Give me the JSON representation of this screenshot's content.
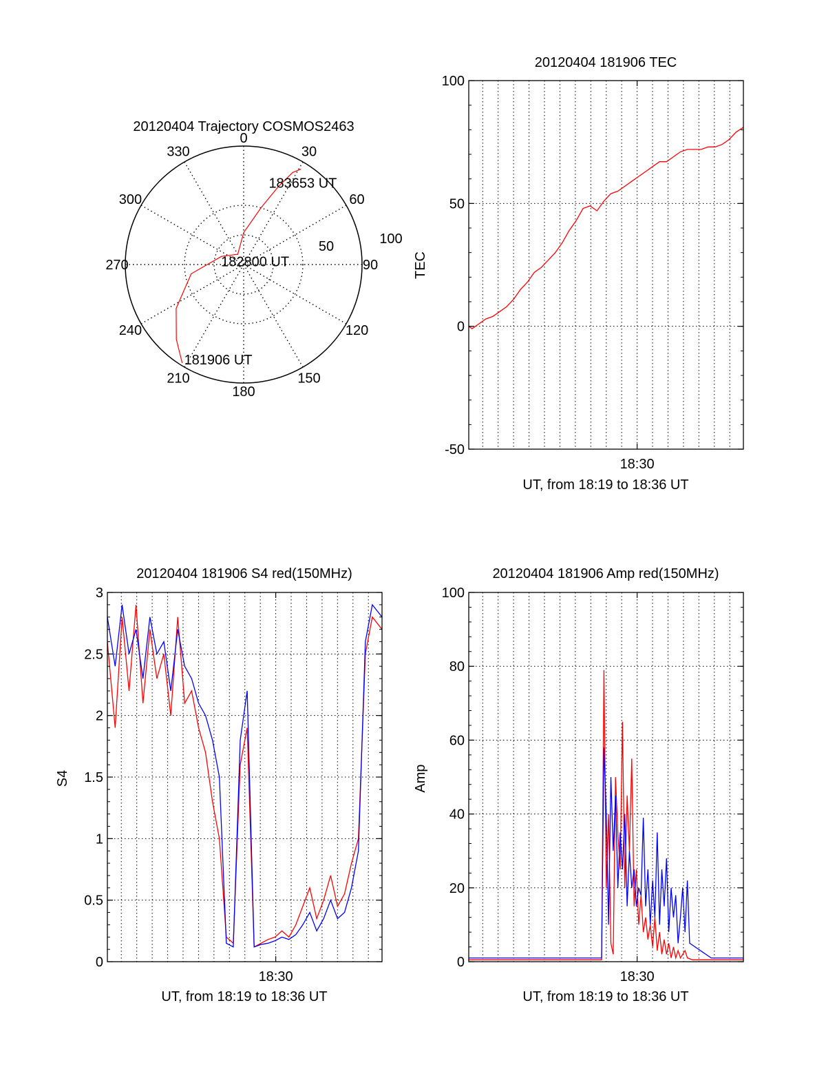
{
  "colors": {
    "primary": "#ff0000",
    "secondary": "#0000ff",
    "axis": "#000000",
    "grid": "#000000"
  },
  "chart_data": [
    {
      "id": "polar",
      "type": "polar",
      "title": "20120404 Trajectory COSMOS2463",
      "azimuth_ticks": [
        "0",
        "30",
        "60",
        "90",
        "120",
        "150",
        "180",
        "210",
        "240",
        "270",
        "300",
        "330"
      ],
      "radial_ticks": [
        "50",
        "100"
      ],
      "rlim": [
        0,
        100
      ],
      "grid": true,
      "series": [
        {
          "color": "#ff0000",
          "points": [
            {
              "az": 212,
              "r": 98
            },
            {
              "az": 222,
              "r": 85
            },
            {
              "az": 237,
              "r": 68
            },
            {
              "az": 260,
              "r": 45
            },
            {
              "az": 290,
              "r": 20
            },
            {
              "az": 330,
              "r": 10
            },
            {
              "az": 0,
              "r": 27
            },
            {
              "az": 17,
              "r": 50
            },
            {
              "az": 24,
              "r": 72
            },
            {
              "az": 28,
              "r": 88
            },
            {
              "az": 31,
              "r": 94
            }
          ]
        }
      ],
      "annotations": [
        {
          "text": "183653 UT",
          "az": 36,
          "r": 85
        },
        {
          "text": "182800 UT",
          "az": 75,
          "r": 10
        },
        {
          "text": "181906 UT",
          "az": 195,
          "r": 83
        }
      ]
    },
    {
      "id": "tec",
      "type": "line",
      "title": "20120404 181906 TEC",
      "xlabel": "UT, from 18:19 to 18:36 UT",
      "ylabel": "TEC",
      "xlim": [
        18.3183,
        18.6147
      ],
      "ylim": [
        -50,
        100
      ],
      "yticks": [
        -50,
        0,
        50,
        100
      ],
      "xticks": [
        {
          "value": 18.5,
          "label": "18:30"
        }
      ],
      "grid": true,
      "series": [
        {
          "color": "#ff0000",
          "x": [
            18.3183,
            18.3219,
            18.3292,
            18.3367,
            18.3442,
            18.3517,
            18.3592,
            18.3667,
            18.3742,
            18.3817,
            18.3892,
            18.3967,
            18.4042,
            18.4117,
            18.4192,
            18.4267,
            18.4342,
            18.4417,
            18.4492,
            18.4567,
            18.4642,
            18.4717,
            18.4792,
            18.4867,
            18.4942,
            18.5017,
            18.5092,
            18.5167,
            18.5242,
            18.5317,
            18.5392,
            18.5467,
            18.5542,
            18.5617,
            18.5692,
            18.5767,
            18.5842,
            18.5917,
            18.5992,
            18.6067,
            18.6147
          ],
          "y": [
            0,
            -1,
            1,
            3,
            4,
            6,
            8,
            11,
            15,
            18,
            22,
            24,
            27,
            30,
            34,
            39,
            43,
            48,
            49,
            47,
            51,
            54,
            55,
            57,
            59,
            61,
            63,
            65,
            67,
            67,
            69,
            71,
            72,
            72,
            72,
            73,
            73,
            74,
            76,
            79,
            81
          ]
        }
      ]
    },
    {
      "id": "s4",
      "type": "line",
      "title": "20120404 181906 S4 red(150MHz)",
      "xlabel": "UT, from 18:19 to 18:36 UT",
      "ylabel": "S4",
      "xlim": [
        18.3183,
        18.6147
      ],
      "ylim": [
        0,
        3
      ],
      "yticks": [
        0,
        0.5,
        1,
        1.5,
        2,
        2.5,
        3
      ],
      "xticks": [
        {
          "value": 18.5,
          "label": "18:30"
        }
      ],
      "grid": true,
      "series": [
        {
          "color": "#ff0000",
          "x": [
            18.3183,
            18.3267,
            18.3342,
            18.3417,
            18.3492,
            18.3567,
            18.3642,
            18.3717,
            18.3792,
            18.3867,
            18.3942,
            18.4017,
            18.4092,
            18.4167,
            18.4242,
            18.4317,
            18.4392,
            18.4467,
            18.4542,
            18.4617,
            18.4692,
            18.4767,
            18.4842,
            18.4917,
            18.4992,
            18.5067,
            18.5142,
            18.5217,
            18.5292,
            18.5367,
            18.5442,
            18.5517,
            18.5592,
            18.5667,
            18.5742,
            18.5817,
            18.5892,
            18.5967,
            18.6042,
            18.6147
          ],
          "y": [
            2.6,
            1.9,
            2.8,
            2.2,
            2.9,
            2.1,
            2.7,
            2.3,
            2.5,
            2.0,
            2.8,
            2.1,
            2.2,
            1.9,
            1.7,
            1.3,
            1.0,
            0.2,
            0.15,
            1.6,
            1.9,
            0.12,
            0.15,
            0.18,
            0.2,
            0.25,
            0.2,
            0.3,
            0.45,
            0.6,
            0.35,
            0.5,
            0.7,
            0.45,
            0.55,
            0.8,
            1.0,
            2.5,
            2.8,
            2.7
          ]
        },
        {
          "color": "#0000ff",
          "x": [
            18.3183,
            18.3267,
            18.3342,
            18.3417,
            18.3492,
            18.3567,
            18.3642,
            18.3717,
            18.3792,
            18.3867,
            18.3942,
            18.4017,
            18.4092,
            18.4167,
            18.4242,
            18.4317,
            18.4392,
            18.4467,
            18.4542,
            18.4617,
            18.4692,
            18.4767,
            18.4842,
            18.4917,
            18.4992,
            18.5067,
            18.5142,
            18.5217,
            18.5292,
            18.5367,
            18.5442,
            18.5517,
            18.5592,
            18.5667,
            18.5742,
            18.5817,
            18.5892,
            18.5967,
            18.6042,
            18.6147
          ],
          "y": [
            2.8,
            2.4,
            2.9,
            2.5,
            2.7,
            2.3,
            2.8,
            2.5,
            2.6,
            2.2,
            2.7,
            2.4,
            2.3,
            2.1,
            2.0,
            1.8,
            1.5,
            0.15,
            0.12,
            1.8,
            2.2,
            0.12,
            0.14,
            0.15,
            0.17,
            0.2,
            0.18,
            0.22,
            0.3,
            0.4,
            0.25,
            0.35,
            0.5,
            0.35,
            0.4,
            0.6,
            0.9,
            2.6,
            2.9,
            2.8
          ]
        }
      ]
    },
    {
      "id": "amp",
      "type": "line",
      "title": "20120404 181906 Amp red(150MHz)",
      "xlabel": "UT, from 18:19 to 18:36 UT",
      "ylabel": "Amp",
      "xlim": [
        18.3183,
        18.6147
      ],
      "ylim": [
        0,
        100
      ],
      "yticks": [
        0,
        20,
        40,
        60,
        80,
        100
      ],
      "xticks": [
        {
          "value": 18.5,
          "label": "18:30"
        }
      ],
      "grid": true,
      "series": [
        {
          "color": "#ff0000",
          "x": [
            18.3183,
            18.34,
            18.37,
            18.4,
            18.4617,
            18.4642,
            18.4667,
            18.4692,
            18.4717,
            18.4742,
            18.4767,
            18.4792,
            18.4817,
            18.4842,
            18.4867,
            18.4892,
            18.4917,
            18.4942,
            18.4967,
            18.4992,
            18.5017,
            18.5042,
            18.5067,
            18.5092,
            18.5117,
            18.5142,
            18.5167,
            18.5192,
            18.5217,
            18.5242,
            18.5267,
            18.5292,
            18.5317,
            18.5342,
            18.5367,
            18.5392,
            18.5417,
            18.5442,
            18.5467,
            18.5492,
            18.5517,
            18.5542,
            18.56,
            18.58,
            18.6147
          ],
          "y": [
            0.5,
            0.5,
            0.5,
            0.5,
            0.5,
            79,
            20,
            40,
            5,
            2,
            50,
            35,
            25,
            65,
            20,
            45,
            30,
            55,
            15,
            25,
            10,
            18,
            8,
            12,
            6,
            10,
            4,
            12,
            3,
            8,
            2,
            6,
            2,
            5,
            1,
            4,
            1,
            3,
            1,
            2,
            3,
            1,
            0.5,
            0.5,
            0.5
          ]
        },
        {
          "color": "#0000ff",
          "x": [
            18.3183,
            18.34,
            18.37,
            18.4,
            18.43,
            18.4617,
            18.4642,
            18.4667,
            18.4692,
            18.4717,
            18.4742,
            18.4767,
            18.4792,
            18.4817,
            18.4842,
            18.4867,
            18.4892,
            18.4917,
            18.4942,
            18.4967,
            18.4992,
            18.5017,
            18.5042,
            18.5067,
            18.5092,
            18.5117,
            18.5142,
            18.5167,
            18.5192,
            18.5217,
            18.5242,
            18.5267,
            18.5292,
            18.5317,
            18.5342,
            18.5367,
            18.5392,
            18.5417,
            18.5442,
            18.5467,
            18.5492,
            18.5517,
            18.5542,
            18.5567,
            18.58,
            18.6147
          ],
          "y": [
            1,
            1,
            1,
            1,
            1,
            1,
            58,
            40,
            10,
            50,
            30,
            45,
            20,
            35,
            25,
            40,
            15,
            30,
            20,
            25,
            15,
            20,
            18,
            39,
            15,
            25,
            10,
            22,
            12,
            35,
            10,
            25,
            15,
            28,
            8,
            20,
            12,
            18,
            5,
            12,
            20,
            8,
            22,
            5,
            1,
            1
          ]
        }
      ]
    }
  ]
}
